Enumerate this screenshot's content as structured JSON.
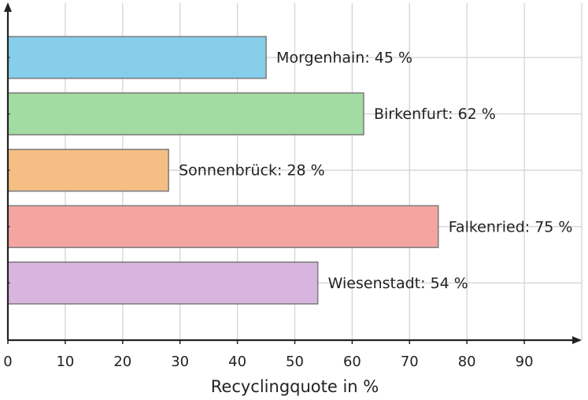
{
  "chart_data": {
    "type": "bar",
    "orientation": "horizontal",
    "categories": [
      "Morgenhain",
      "Birkenfurt",
      "Sonnenbrück",
      "Falkenried",
      "Wiesenstadt"
    ],
    "values": [
      45,
      62,
      28,
      75,
      54
    ],
    "value_unit": "%",
    "labels": [
      "Morgenhain: 45 %",
      "Birkenfurt: 62 %",
      "Sonnenbrück: 28 %",
      "Falkenried: 75 %",
      "Wiesenstadt: 54 %"
    ],
    "colors": [
      "#87ceeb",
      "#a2dca2",
      "#f4be84",
      "#f4a5a0",
      "#d8b5df"
    ],
    "xlabel": "Recyclingquote in %",
    "ylabel": "",
    "title": "",
    "xlim": [
      0,
      100
    ],
    "xticks": [
      0,
      10,
      20,
      30,
      40,
      50,
      60,
      70,
      80,
      90
    ],
    "grid": true,
    "legend": "none"
  }
}
